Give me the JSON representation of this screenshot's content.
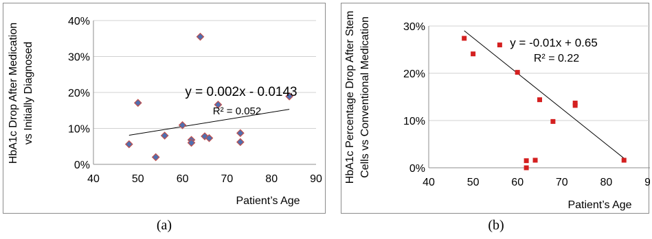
{
  "chart_data": [
    {
      "type": "scatter",
      "panel_label": "(a)",
      "ylabel": "HbA1c Drop After Medication vs Initially Diagnosed",
      "ylabel_lines": [
        "HbA1c Drop After Medication",
        "vs Initially Diagnosed"
      ],
      "xlabel": "Patient’s Age",
      "xlim": [
        40,
        90
      ],
      "ylim": [
        0,
        0.4
      ],
      "x_ticks": [
        "40",
        "50",
        "60",
        "70",
        "80",
        "90"
      ],
      "y_ticks": [
        "0%",
        "10%",
        "20%",
        "30%",
        "40%"
      ],
      "grid": "horizontal",
      "marker": "diamond",
      "marker_color": "#4f6fb0",
      "marker_edge": "#c0504d",
      "x": [
        48,
        50,
        54,
        56,
        60,
        62,
        62,
        64,
        65,
        66,
        68,
        73,
        73,
        84
      ],
      "y": [
        0.056,
        0.171,
        0.02,
        0.08,
        0.109,
        0.068,
        0.06,
        0.355,
        0.078,
        0.073,
        0.166,
        0.087,
        0.062,
        0.189
      ],
      "trendline": {
        "x": [
          48,
          84
        ],
        "y": [
          0.081,
          0.153
        ]
      },
      "equation": "y = 0.002x - 0.0143",
      "r_squared": "R² = 0.052"
    },
    {
      "type": "scatter",
      "panel_label": "(b)",
      "ylabel": "HbA1c Percentage Drop After Stem Cells vs Conventional Medication",
      "ylabel_lines": [
        "HbA1c Percentage Drop After Stem",
        "Cells vs Conventional Medication"
      ],
      "xlabel": "Patient’s Age",
      "xlim": [
        40,
        90
      ],
      "ylim": [
        0,
        0.3
      ],
      "x_ticks": [
        "40",
        "50",
        "60",
        "70",
        "80",
        "90"
      ],
      "y_ticks": [
        "0%",
        "10%",
        "20%",
        "30%"
      ],
      "grid": "horizontal",
      "marker": "square",
      "marker_color": "#d42020",
      "x": [
        48,
        50,
        56,
        60,
        62,
        62,
        64,
        65,
        68,
        73,
        73,
        84
      ],
      "y": [
        0.274,
        0.241,
        0.26,
        0.202,
        0.0,
        0.015,
        0.016,
        0.144,
        0.098,
        0.132,
        0.137,
        0.016
      ],
      "trendline": {
        "x": [
          48,
          84
        ],
        "y": [
          0.29,
          0.02
        ]
      },
      "equation": "y = -0.01x + 0.65",
      "r_squared": "R² = 0.22"
    }
  ]
}
